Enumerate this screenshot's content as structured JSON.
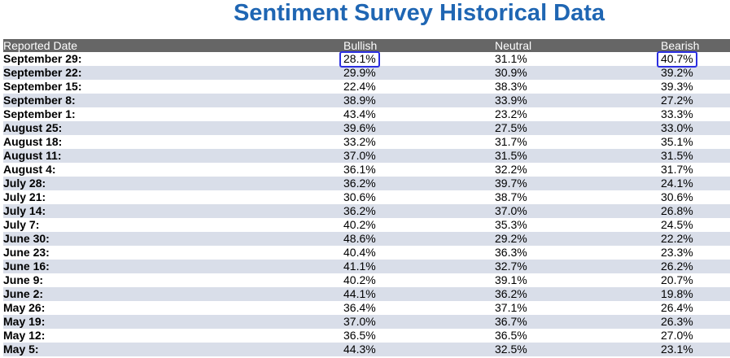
{
  "title": "Sentiment Survey Historical Data",
  "chart_data": {
    "type": "table",
    "title": "Sentiment Survey Historical Data",
    "columns": [
      "Reported Date",
      "Bullish",
      "Neutral",
      "Bearish"
    ],
    "rows": [
      {
        "date": "September 29:",
        "bullish": "28.1%",
        "neutral": "31.1%",
        "bearish": "40.7%"
      },
      {
        "date": "September 22:",
        "bullish": "29.9%",
        "neutral": "30.9%",
        "bearish": "39.2%"
      },
      {
        "date": "September 15:",
        "bullish": "22.4%",
        "neutral": "38.3%",
        "bearish": "39.3%"
      },
      {
        "date": "September 8:",
        "bullish": "38.9%",
        "neutral": "33.9%",
        "bearish": "27.2%"
      },
      {
        "date": "September 1:",
        "bullish": "43.4%",
        "neutral": "23.2%",
        "bearish": "33.3%"
      },
      {
        "date": "August 25:",
        "bullish": "39.6%",
        "neutral": "27.5%",
        "bearish": "33.0%"
      },
      {
        "date": "August 18:",
        "bullish": "33.2%",
        "neutral": "31.7%",
        "bearish": "35.1%"
      },
      {
        "date": "August 11:",
        "bullish": "37.0%",
        "neutral": "31.5%",
        "bearish": "31.5%"
      },
      {
        "date": "August 4:",
        "bullish": "36.1%",
        "neutral": "32.2%",
        "bearish": "31.7%"
      },
      {
        "date": "July 28:",
        "bullish": "36.2%",
        "neutral": "39.7%",
        "bearish": "24.1%"
      },
      {
        "date": "July 21:",
        "bullish": "30.6%",
        "neutral": "38.7%",
        "bearish": "30.6%"
      },
      {
        "date": "July 14:",
        "bullish": "36.2%",
        "neutral": "37.0%",
        "bearish": "26.8%"
      },
      {
        "date": "July 7:",
        "bullish": "40.2%",
        "neutral": "35.3%",
        "bearish": "24.5%"
      },
      {
        "date": "June 30:",
        "bullish": "48.6%",
        "neutral": "29.2%",
        "bearish": "22.2%"
      },
      {
        "date": "June 23:",
        "bullish": "40.4%",
        "neutral": "36.3%",
        "bearish": "23.3%"
      },
      {
        "date": "June 16:",
        "bullish": "41.1%",
        "neutral": "32.7%",
        "bearish": "26.2%"
      },
      {
        "date": "June 9:",
        "bullish": "40.2%",
        "neutral": "39.1%",
        "bearish": "20.7%"
      },
      {
        "date": "June 2:",
        "bullish": "44.1%",
        "neutral": "36.2%",
        "bearish": "19.8%"
      },
      {
        "date": "May 26:",
        "bullish": "36.4%",
        "neutral": "37.1%",
        "bearish": "26.4%"
      },
      {
        "date": "May 19:",
        "bullish": "37.0%",
        "neutral": "36.7%",
        "bearish": "26.3%"
      },
      {
        "date": "May 12:",
        "bullish": "36.5%",
        "neutral": "36.5%",
        "bearish": "27.0%"
      },
      {
        "date": "May 5:",
        "bullish": "44.3%",
        "neutral": "32.5%",
        "bearish": "23.1%"
      }
    ],
    "highlights": [
      {
        "row": 0,
        "column": "bullish"
      },
      {
        "row": 0,
        "column": "bearish"
      }
    ]
  },
  "colors": {
    "title": "#1f66b3",
    "header_bg": "#666666",
    "header_text": "#ffffff",
    "row_alt_bg": "#d9dee9",
    "highlight_border": "#2b2fe0"
  }
}
